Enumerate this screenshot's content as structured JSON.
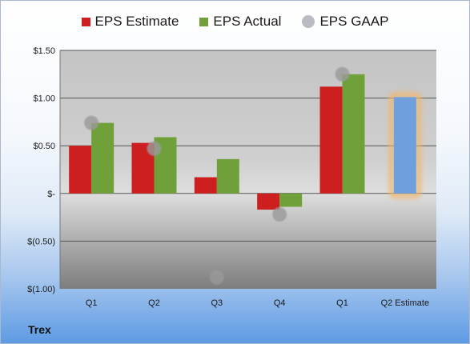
{
  "company": "Trex",
  "colors": {
    "estimate": "#cd1f1f",
    "actual": "#6fa03a",
    "gaap": "#9a9a9a",
    "q2_estimate": "#6f9fdc",
    "q2_glow": "#f2b66a"
  },
  "chart_data": {
    "type": "bar",
    "categories": [
      "Q1",
      "Q2",
      "Q3",
      "Q4",
      "Q1",
      "Q2 Estimate"
    ],
    "ylim": [
      -1.0,
      1.5
    ],
    "yticks": [
      1.5,
      1.0,
      0.5,
      0,
      -0.5,
      -1.0
    ],
    "ytick_labels": [
      "$1.50",
      "$1.00",
      "$0.50",
      "$-",
      "$(0.50)",
      "$(1.00)"
    ],
    "legend_position": "top",
    "series": [
      {
        "name": "EPS Estimate",
        "values": [
          0.5,
          0.53,
          0.17,
          -0.17,
          1.12,
          1.01
        ]
      },
      {
        "name": "EPS Actual",
        "values": [
          0.74,
          0.59,
          0.36,
          -0.14,
          1.25,
          null
        ]
      },
      {
        "name": "EPS GAAP",
        "values": [
          0.74,
          0.47,
          -0.88,
          -0.22,
          1.25,
          null
        ]
      }
    ]
  }
}
